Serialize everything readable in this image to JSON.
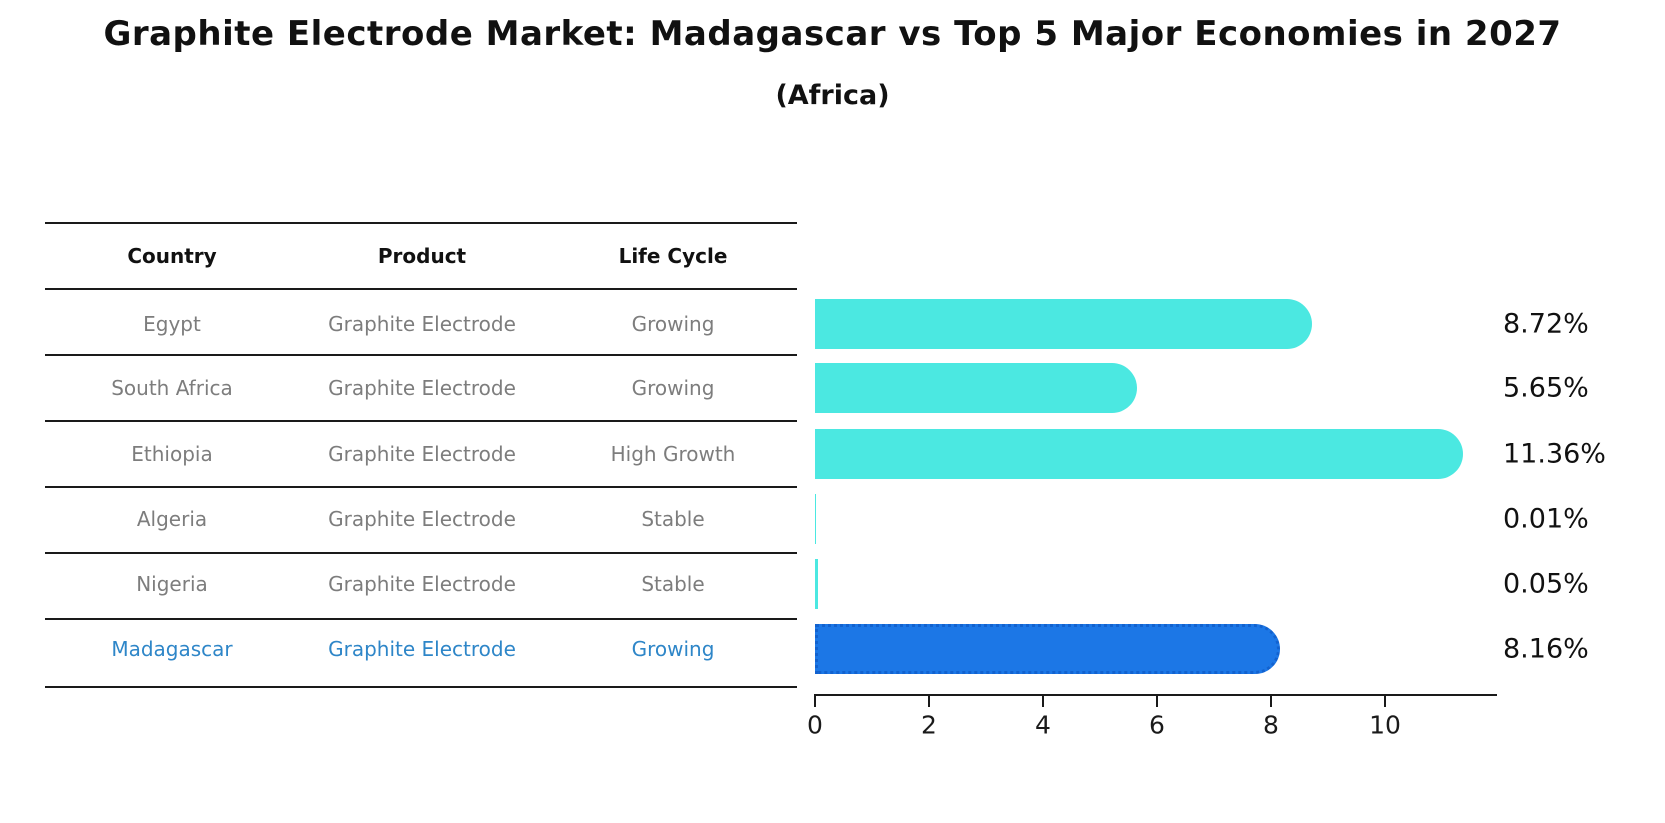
{
  "title": "Graphite Electrode Market: Madagascar vs Top 5 Major Economies in 2027",
  "subtitle": "(Africa)",
  "table": {
    "headers": {
      "country": "Country",
      "product": "Product",
      "life_cycle": "Life Cycle"
    },
    "rows": [
      {
        "country": "Egypt",
        "product": "Graphite Electrode",
        "life_cycle": "Growing",
        "highlighted": false
      },
      {
        "country": "South Africa",
        "product": "Graphite Electrode",
        "life_cycle": "Growing",
        "highlighted": false
      },
      {
        "country": "Ethiopia",
        "product": "Graphite Electrode",
        "life_cycle": "High Growth",
        "highlighted": false
      },
      {
        "country": "Algeria",
        "product": "Graphite Electrode",
        "life_cycle": "Stable",
        "highlighted": false
      },
      {
        "country": "Nigeria",
        "product": "Graphite Electrode",
        "life_cycle": "Stable",
        "highlighted": false
      },
      {
        "country": "Madagascar",
        "product": "Graphite Electrode",
        "life_cycle": "Growing",
        "highlighted": true
      }
    ]
  },
  "chart_data": {
    "type": "bar",
    "orientation": "horizontal",
    "title": "Graphite Electrode Market: Madagascar vs Top 5 Major Economies in 2027 (Africa)",
    "categories": [
      "Egypt",
      "South Africa",
      "Ethiopia",
      "Algeria",
      "Nigeria",
      "Madagascar"
    ],
    "values": [
      8.72,
      5.65,
      11.36,
      0.01,
      0.05,
      8.16
    ],
    "labels": [
      "8.72%",
      "5.65%",
      "11.36%",
      "0.01%",
      "0.05%",
      "8.16%"
    ],
    "unit": "%",
    "xlabel": "",
    "ylabel": "",
    "xlim": [
      0,
      11.9
    ],
    "xticks": [
      0,
      2,
      4,
      6,
      8,
      10
    ],
    "grid": false,
    "legend": "none",
    "highlight_index": 5,
    "colors": {
      "bar_default": "#4BE8E1",
      "bar_highlight": "#1C77E6",
      "bar_highlight_border": "#1262cf",
      "highlight_text": "#2E86C8",
      "table_text": "#7d7d7d",
      "axis_text": "#1a1a1a"
    }
  }
}
